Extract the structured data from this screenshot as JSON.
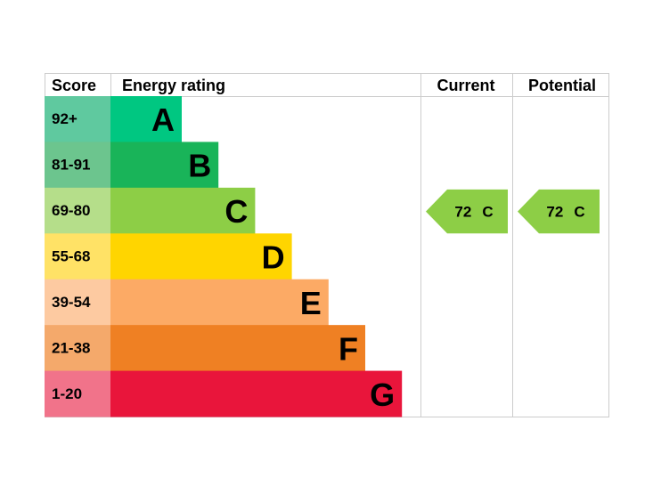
{
  "header": {
    "score": "Score",
    "energy_rating": "Energy rating",
    "current": "Current",
    "potential": "Potential"
  },
  "rows": [
    {
      "score": "92+",
      "letter": "A",
      "color": "#00c781",
      "score_color": "#5fc99f"
    },
    {
      "score": "81-91",
      "letter": "B",
      "color": "#19b459",
      "score_color": "#6cc58e"
    },
    {
      "score": "69-80",
      "letter": "C",
      "color": "#8dce46",
      "score_color": "#b5de8a"
    },
    {
      "score": "55-68",
      "letter": "D",
      "color": "#ffd500",
      "score_color": "#ffe266"
    },
    {
      "score": "39-54",
      "letter": "E",
      "color": "#fcaa65",
      "score_color": "#fdcaa1"
    },
    {
      "score": "21-38",
      "letter": "F",
      "color": "#ef8023",
      "score_color": "#f4a96b"
    },
    {
      "score": "1-20",
      "letter": "G",
      "color": "#e9153b",
      "score_color": "#f1738a"
    }
  ],
  "current": {
    "score": "72",
    "rating": "C"
  },
  "potential": {
    "score": "72",
    "rating": "C"
  }
}
